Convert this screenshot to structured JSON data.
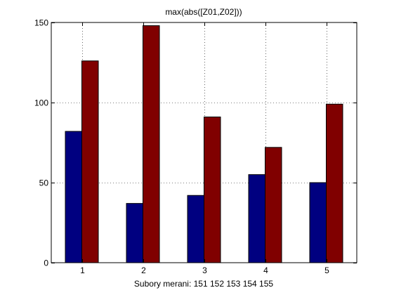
{
  "chart_data": {
    "type": "bar",
    "title": "max(abs([Z01,Z02]))",
    "xlabel": "Subory merani: 151 152 153 154 155",
    "ylabel": "",
    "categories": [
      "1",
      "2",
      "3",
      "4",
      "5"
    ],
    "series": [
      {
        "values": [
          82,
          37,
          42,
          55,
          50
        ],
        "color": "#000080"
      },
      {
        "values": [
          126,
          148,
          91,
          72,
          99
        ],
        "color": "#800000"
      }
    ],
    "ylim": [
      0,
      150
    ],
    "yticks": [
      0,
      50,
      100,
      150
    ],
    "grid": true,
    "legend": "none"
  }
}
